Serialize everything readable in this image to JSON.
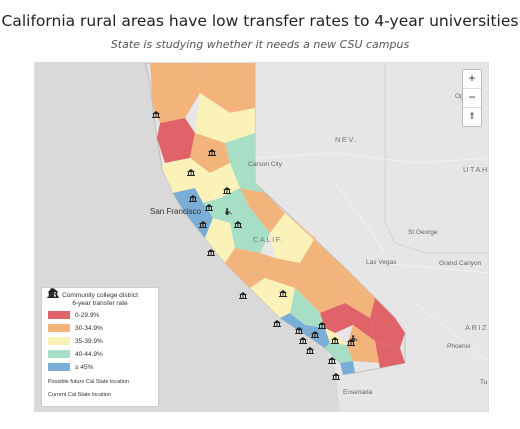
{
  "title": "California rural areas have low transfer rates to 4-year universities",
  "subtitle": "State is studying whether it needs a new CSU campus",
  "map": {
    "labels": {
      "nev": "NEV.",
      "utah": "UTAH",
      "calif": "CALIF.",
      "ariz": "ARIZ.",
      "carson_city": "Carson City",
      "san_francisco": "San Francisco",
      "st_george": "St George",
      "las_vegas": "Las Vegas",
      "grand_canyon": "Grand Canyon",
      "phoenix": "Phoenix",
      "ensenada": "Ensenada",
      "ogden": "Ogd",
      "tu": "Tu"
    },
    "zoom": {
      "in": "+",
      "out": "−",
      "reset": "⇑"
    }
  },
  "legend": {
    "title_line1": "Community college district",
    "title_line2": "6-year transfer rate",
    "items": [
      {
        "label": "0-29.9%",
        "color": "#e0636a"
      },
      {
        "label": "30-34.9%",
        "color": "#f3b47c"
      },
      {
        "label": "35-39.9%",
        "color": "#faf2b8"
      },
      {
        "label": "40-44.9%",
        "color": "#a6dfc6"
      },
      {
        "label": "≥ 45%",
        "color": "#7aaed6"
      }
    ],
    "future_label": "Possible future Cal State location",
    "current_label": "Current Cal State location"
  },
  "icons": {
    "zoom_in": "plus-icon",
    "zoom_out": "minus-icon",
    "reset": "compass-icon",
    "future": "construction-worker-icon",
    "current": "university-building-icon"
  }
}
